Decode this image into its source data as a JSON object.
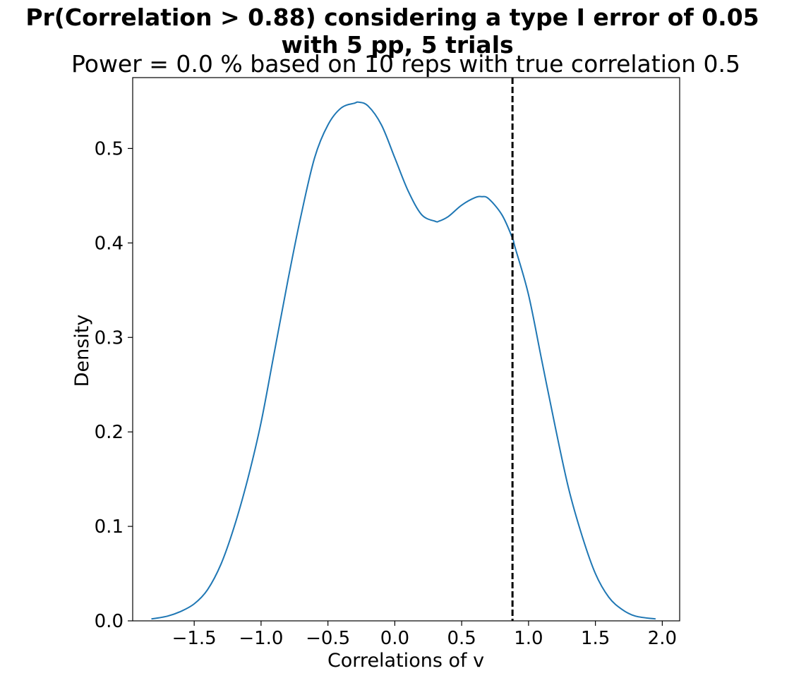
{
  "chart_data": {
    "type": "line",
    "title_lines": [
      "Pr(Correlation > 0.88) considering a type I error of 0.05",
      "with 5 pp, 5 trials"
    ],
    "subtitle": "Power = 0.0 % based on 10 reps with true correlation 0.5",
    "xlabel": "Correlations of v",
    "ylabel": "Density",
    "xlim": [
      -1.96,
      2.13
    ],
    "ylim": [
      0.0,
      0.575
    ],
    "xticks": [
      -1.5,
      -1.0,
      -0.5,
      0.0,
      0.5,
      1.0,
      1.5,
      2.0
    ],
    "xtick_labels": [
      "−1.5",
      "−1.0",
      "−0.5",
      "0.0",
      "0.5",
      "1.0",
      "1.5",
      "2.0"
    ],
    "yticks": [
      0.0,
      0.1,
      0.2,
      0.3,
      0.4,
      0.5
    ],
    "ytick_labels": [
      "0.0",
      "0.1",
      "0.2",
      "0.3",
      "0.4",
      "0.5"
    ],
    "grid": false,
    "series": [
      {
        "color": "#1f77b4",
        "x": [
          -1.82,
          -1.7,
          -1.6,
          -1.5,
          -1.4,
          -1.3,
          -1.2,
          -1.1,
          -1.0,
          -0.9,
          -0.8,
          -0.7,
          -0.6,
          -0.5,
          -0.4,
          -0.3,
          -0.27,
          -0.2,
          -0.1,
          0.0,
          0.1,
          0.2,
          0.3,
          0.33,
          0.4,
          0.5,
          0.6,
          0.65,
          0.7,
          0.8,
          0.88,
          0.9,
          1.0,
          1.1,
          1.2,
          1.3,
          1.4,
          1.5,
          1.6,
          1.7,
          1.8,
          1.95
        ],
        "y": [
          0.002,
          0.005,
          0.01,
          0.018,
          0.033,
          0.06,
          0.1,
          0.15,
          0.21,
          0.285,
          0.36,
          0.43,
          0.49,
          0.525,
          0.543,
          0.548,
          0.549,
          0.545,
          0.525,
          0.49,
          0.455,
          0.43,
          0.423,
          0.423,
          0.428,
          0.44,
          0.448,
          0.449,
          0.447,
          0.43,
          0.405,
          0.395,
          0.345,
          0.275,
          0.205,
          0.14,
          0.09,
          0.05,
          0.025,
          0.012,
          0.005,
          0.002
        ]
      }
    ],
    "reference_line": {
      "x": 0.88,
      "orientation": "vertical",
      "style": "dashed",
      "color": "#000000"
    }
  }
}
